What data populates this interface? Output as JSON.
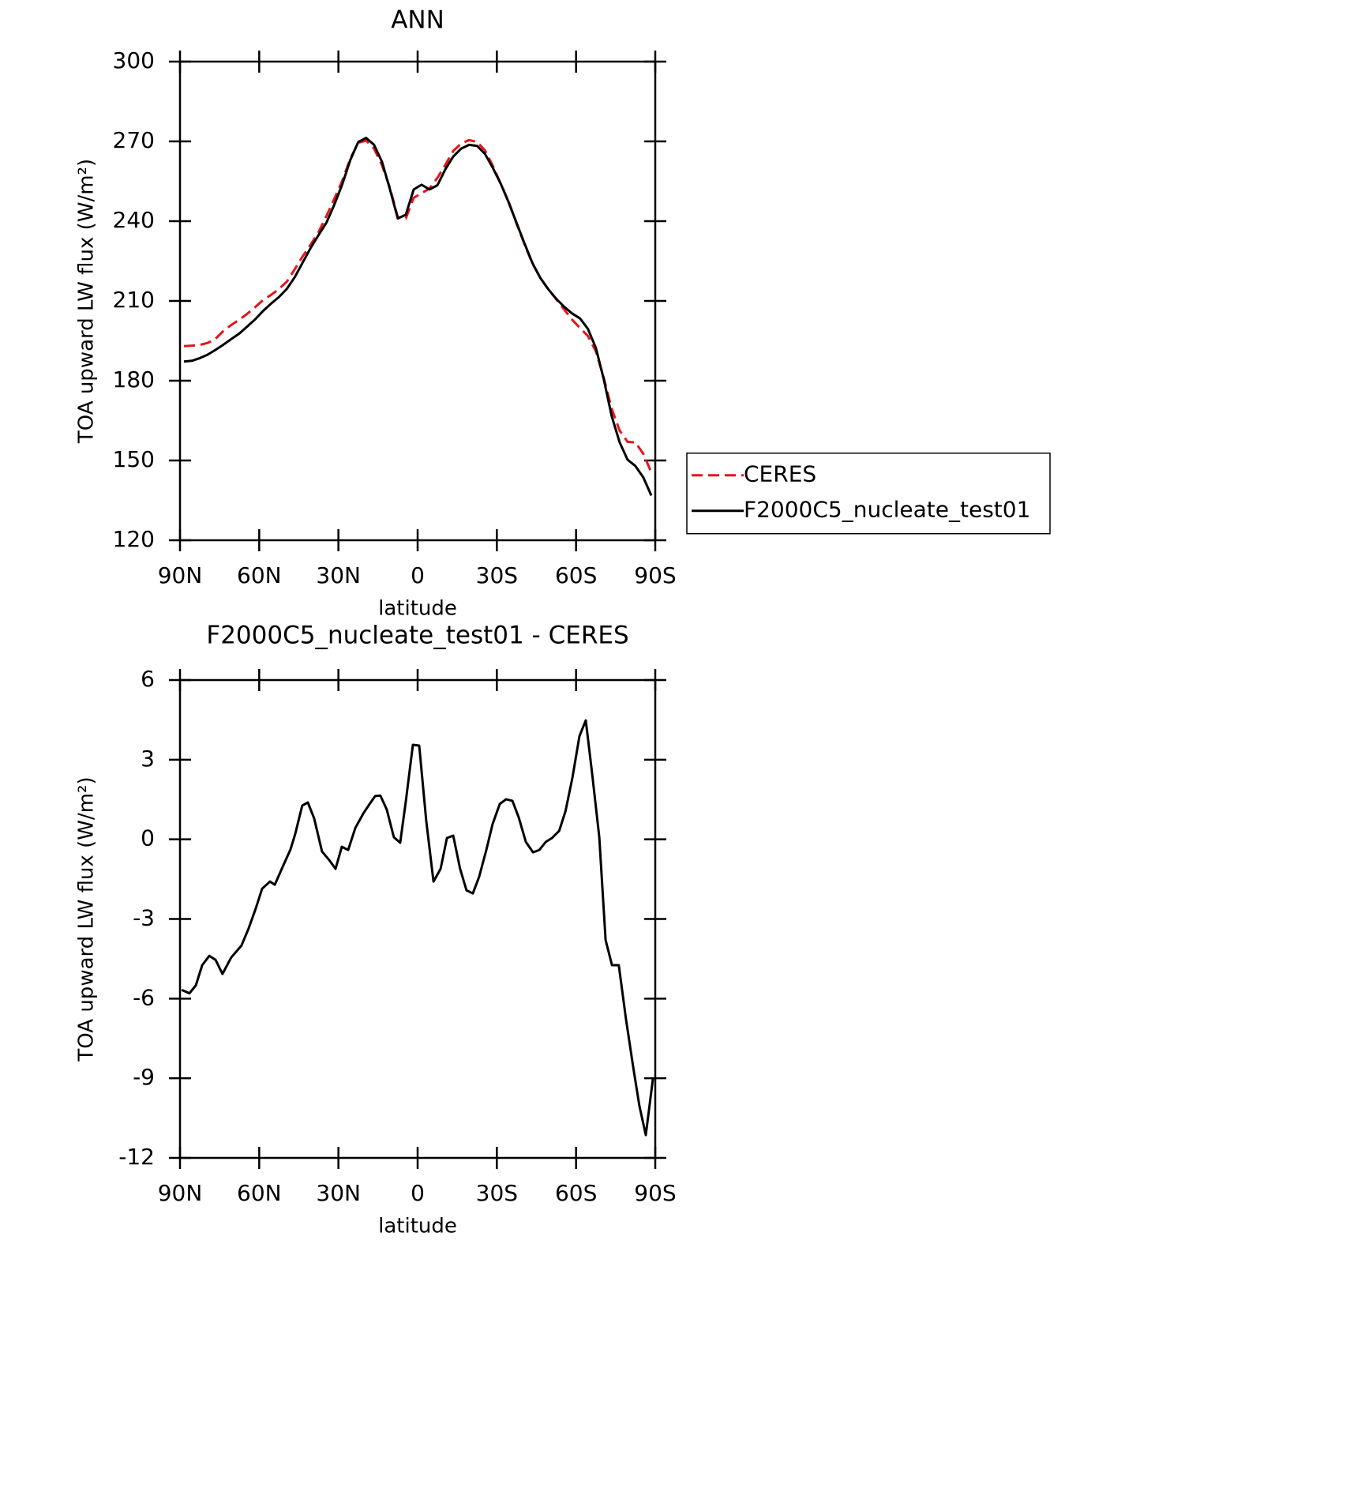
{
  "chart_data": [
    {
      "type": "line",
      "title": "ANN",
      "xlabel": "latitude",
      "ylabel": "TOA upward LW flux (W/m²)",
      "x": [
        88.5,
        85.5,
        82.5,
        79.5,
        76.5,
        73.5,
        70.5,
        67.5,
        64.5,
        61.5,
        58.5,
        55.5,
        52.5,
        49.5,
        46.5,
        43.5,
        40.5,
        37.5,
        34.5,
        31.5,
        28.5,
        25.5,
        22.5,
        19.5,
        16.5,
        13.5,
        10.5,
        7.5,
        4.5,
        1.5,
        -1.5,
        -4.5,
        -7.5,
        -10.5,
        -13.5,
        -16.5,
        -19.5,
        -22.5,
        -25.5,
        -28.5,
        -31.5,
        -34.5,
        -37.5,
        -40.5,
        -43.5,
        -46.5,
        -49.5,
        -52.5,
        -55.5,
        -58.5,
        -61.5,
        -64.5,
        -67.5,
        -70.5,
        -73.5,
        -76.5,
        -79.5,
        -82.5,
        -85.5,
        -88.5
      ],
      "series": [
        {
          "name": "CERES",
          "color": "#e8141a",
          "style": "dashed",
          "values": [
            193,
            193.2,
            193.5,
            194.2,
            195.8,
            198.8,
            201,
            203,
            205.2,
            207.7,
            210.4,
            212.3,
            214.5,
            217.3,
            222,
            226.8,
            231.2,
            236,
            242,
            248.5,
            255.3,
            263.5,
            269.5,
            270.3,
            267.3,
            261,
            252.5,
            241.5,
            241,
            248.8,
            250.5,
            252.3,
            256.3,
            261.2,
            266.4,
            269.2,
            270.5,
            269.8,
            266.6,
            260.8,
            254,
            247.2,
            239,
            231.2,
            224,
            218.6,
            214.4,
            210.6,
            206.8,
            203,
            199.8,
            196.8,
            191,
            181,
            169.5,
            161.2,
            157,
            156.8,
            152.5,
            145.5
          ]
        },
        {
          "name": "F2000C5_nucleate_test01",
          "color": "#000000",
          "style": "solid",
          "values": [
            187.2,
            187.5,
            188.5,
            189.8,
            191.6,
            193.6,
            195.7,
            197.8,
            200.4,
            203.1,
            206.3,
            209,
            211.5,
            214.6,
            219,
            224.5,
            230,
            234.8,
            239.5,
            246.3,
            254,
            263,
            269.8,
            271.3,
            268.7,
            262.3,
            252,
            241,
            242.4,
            251.9,
            253.7,
            251.9,
            253.5,
            259.5,
            264.3,
            267.3,
            268.7,
            268.3,
            265.3,
            260,
            254,
            247,
            239.3,
            231.5,
            224.2,
            218.6,
            214.4,
            210.8,
            207.8,
            205.3,
            203.4,
            199.5,
            192.3,
            180.5,
            166.7,
            156.8,
            150.3,
            147.9,
            143.6,
            136.8
          ]
        }
      ],
      "xlim": [
        90,
        -90
      ],
      "xticks": [
        {
          "value": 90,
          "label": "90N"
        },
        {
          "value": 60,
          "label": "60N"
        },
        {
          "value": 30,
          "label": "30N"
        },
        0,
        {
          "value": -30,
          "label": "30S"
        },
        {
          "value": -60,
          "label": "60S"
        },
        {
          "value": -90,
          "label": "90S"
        }
      ],
      "ylim": [
        120,
        300
      ],
      "yticks": [
        120,
        150,
        180,
        210,
        240,
        270,
        300
      ],
      "legend": "right"
    },
    {
      "type": "line",
      "title": "F2000C5_nucleate_test01 - CERES",
      "xlabel": "latitude",
      "ylabel": "TOA upward LW flux (W/m²)",
      "x": [
        89.4,
        86.4,
        84,
        81.6,
        78.9,
        76.5,
        73.9,
        70.6,
        66.7,
        64,
        61.3,
        58.9,
        55.9,
        54.1,
        51.4,
        48.1,
        46.3,
        43.7,
        41.6,
        39.2,
        36.2,
        33.2,
        31.1,
        28.7,
        26.3,
        23.6,
        20.6,
        18.2,
        16.1,
        14.1,
        11.7,
        9,
        6.6,
        4.5,
        1.8,
        -0.6,
        -3.3,
        -6,
        -8.7,
        -11.1,
        -13.5,
        -16.1,
        -18.5,
        -20.9,
        -23.3,
        -26,
        -28.4,
        -31.1,
        -33.5,
        -35.9,
        -38.3,
        -41,
        -43.7,
        -46.1,
        -48.5,
        -50.9,
        -53.6,
        -56,
        -58.6,
        -61.3,
        -63.7,
        -66.1,
        -68.8,
        -71.2,
        -73.6,
        -76.2,
        -78.9,
        -81.6,
        -84,
        -86.4,
        -89.1
      ],
      "series": [
        {
          "name": "F2000C5_nucleate_test01 - CERES",
          "color": "#000000",
          "style": "solid",
          "values": [
            -5.67,
            -5.8,
            -5.5,
            -4.74,
            -4.39,
            -4.54,
            -5.07,
            -4.45,
            -4.0,
            -3.35,
            -2.6,
            -1.86,
            -1.59,
            -1.71,
            -1.1,
            -0.37,
            0.23,
            1.27,
            1.39,
            0.79,
            -0.46,
            -0.82,
            -1.11,
            -0.28,
            -0.4,
            0.43,
            0.97,
            1.33,
            1.63,
            1.65,
            1.12,
            0.08,
            -0.13,
            1.42,
            3.56,
            3.53,
            0.67,
            -1.59,
            -1.11,
            0.05,
            0.14,
            -1.11,
            -1.92,
            -2.04,
            -1.41,
            -0.4,
            0.58,
            1.33,
            1.51,
            1.45,
            0.82,
            -0.1,
            -0.49,
            -0.4,
            -0.1,
            0.05,
            0.32,
            1.06,
            2.31,
            3.89,
            4.48,
            2.46,
            0.08,
            -3.79,
            -4.74,
            -4.74,
            -6.77,
            -8.55,
            -10.04,
            -11.14,
            -9.03
          ]
        }
      ],
      "xlim": [
        90,
        -90
      ],
      "xticks": [
        {
          "value": 90,
          "label": "90N"
        },
        {
          "value": 60,
          "label": "60N"
        },
        {
          "value": 30,
          "label": "30N"
        },
        0,
        {
          "value": -30,
          "label": "30S"
        },
        {
          "value": -60,
          "label": "60S"
        },
        {
          "value": -90,
          "label": "90S"
        }
      ],
      "ylim": [
        -12,
        6
      ],
      "yticks": [
        -12,
        -9,
        -6,
        -3,
        0,
        3,
        6
      ]
    }
  ]
}
